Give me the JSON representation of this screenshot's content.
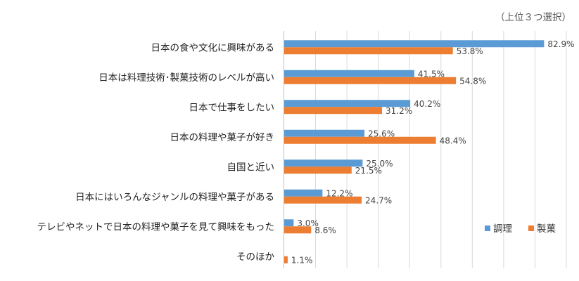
{
  "chart_data": {
    "type": "bar",
    "orientation": "horizontal",
    "note": "（上位３つ選択）",
    "categories": [
      "日本の食や文化に興味がある",
      "日本は料理技術･製菓技術のレベルが高い",
      "日本で仕事をしたい",
      "日本の料理や菓子が好き",
      "自国と近い",
      "日本にはいろんなジャンルの料理や菓子がある",
      "テレビやネットで日本の料理や菓子を見て興味をもった",
      "そのほか"
    ],
    "series": [
      {
        "name": "調理",
        "color": "#5b9bd5",
        "values": [
          82.9,
          41.5,
          40.2,
          25.6,
          25.0,
          12.2,
          3.0,
          0
        ],
        "labels": [
          "82.9%",
          "41.5%",
          "40.2%",
          "25.6%",
          "25.0%",
          "12.2%",
          "3.0%",
          ""
        ]
      },
      {
        "name": "製菓",
        "color": "#ed7d31",
        "values": [
          53.8,
          54.8,
          31.2,
          48.4,
          21.5,
          24.7,
          8.6,
          1.1
        ],
        "labels": [
          "53.8%",
          "54.8%",
          "31.2%",
          "48.4%",
          "21.5%",
          "24.7%",
          "8.6%",
          "1.1%"
        ]
      }
    ],
    "xlim": [
      0,
      90
    ],
    "gridlines": "vertical",
    "legend": "bottom-right"
  }
}
